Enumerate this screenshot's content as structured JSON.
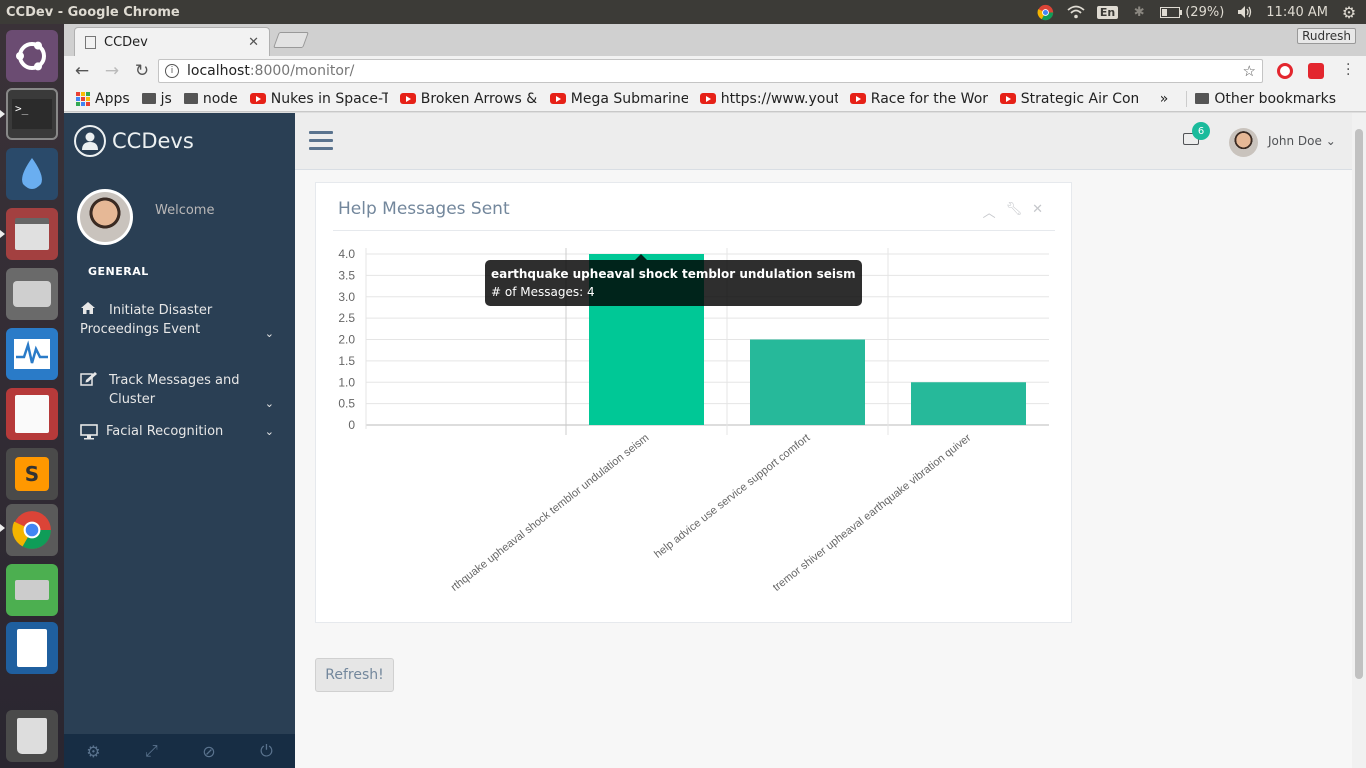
{
  "os": {
    "window_title": "CCDev - Google Chrome",
    "keyboard_layout": "En",
    "battery": "(29%)",
    "clock": "11:40 AM"
  },
  "browser": {
    "tab_title": "CCDev",
    "profile_name": "Rudresh",
    "url_host": "localhost",
    "url_rest": ":8000/monitor/",
    "bookmarks": [
      {
        "label": "Apps",
        "icon": "apps-icon"
      },
      {
        "label": "js",
        "icon": "folder-icon"
      },
      {
        "label": "node",
        "icon": "folder-icon"
      },
      {
        "label": "Nukes in Space-The",
        "icon": "youtube-icon"
      },
      {
        "label": "Broken Arrows & In",
        "icon": "youtube-icon"
      },
      {
        "label": "Mega Submarine: T",
        "icon": "youtube-icon"
      },
      {
        "label": "https://www.yout",
        "icon": "youtube-icon"
      },
      {
        "label": "Race for the World",
        "icon": "youtube-icon"
      },
      {
        "label": "Strategic Air Com",
        "icon": "youtube-icon"
      }
    ],
    "overflow_label": "»",
    "other_bookmarks": "Other bookmarks"
  },
  "app": {
    "brand": "CCDevs",
    "welcome": "Welcome",
    "section": "GENERAL",
    "menu": [
      {
        "label": "Initiate Disaster Proceedings Event",
        "icon": "home-icon"
      },
      {
        "label": "Track Messages and Cluster",
        "icon": "edit-icon"
      },
      {
        "label": "Facial Recognition",
        "icon": "desktop-icon"
      }
    ],
    "notifications_count": "6",
    "username": "John Doe",
    "panel_title": "Help Messages Sent",
    "refresh_label": "Refresh!",
    "tooltip": {
      "title": "earthquake upheaval shock temblor undulation seism",
      "body": "# of Messages: 4"
    },
    "accent": "#1abb9c",
    "sidebar_bg": "#2a3f54"
  },
  "chart_data": {
    "type": "bar",
    "categories": [
      "earthquake upheaval shock temblor undulation seism",
      "help advice use service support comfort",
      "tremor shiver upheaval earthquake vibration quiver"
    ],
    "visible_labels": [
      "rthquake upheaval shock temblor undulation seism",
      "help advice use service support comfort",
      "tremor shiver upheaval earthquake vibration quiver"
    ],
    "series": [
      {
        "values": [
          4,
          2,
          1
        ]
      }
    ],
    "ylim": [
      0,
      4
    ],
    "yticks": [
      "0",
      "0.5",
      "1.0",
      "1.5",
      "2.0",
      "2.5",
      "3.0",
      "3.5",
      "4.0"
    ],
    "bar_colors": [
      "#00c896",
      "#26b99a",
      "#26b99a"
    ],
    "grid": true
  }
}
